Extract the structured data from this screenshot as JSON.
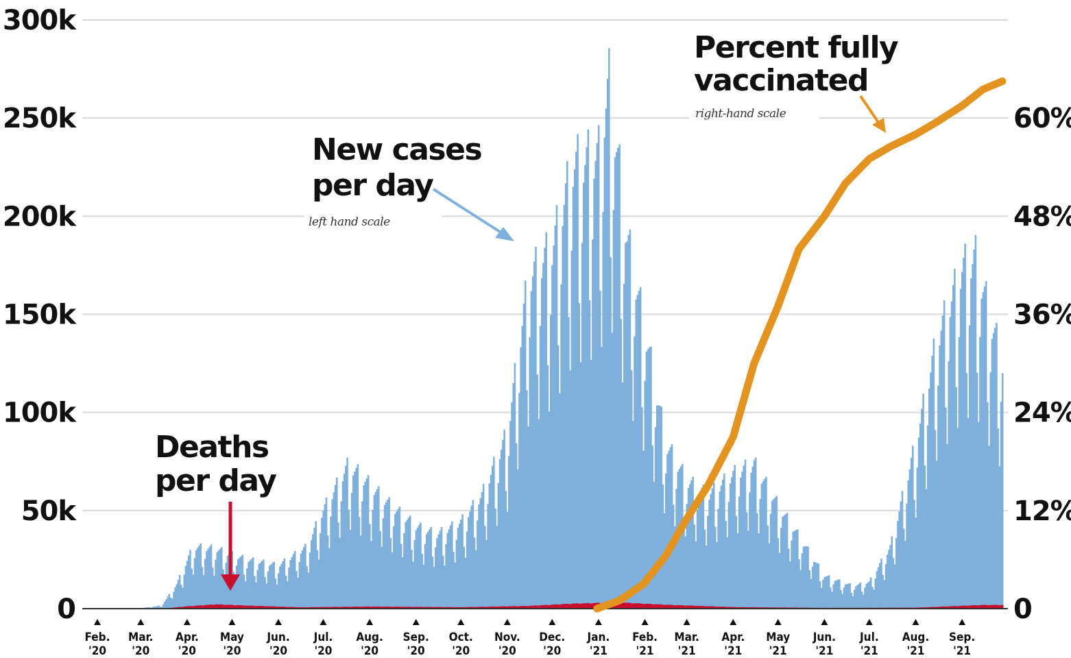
{
  "chart_data": {
    "type": "bar",
    "left_axis": {
      "ticks": [
        0,
        50000,
        100000,
        150000,
        200000,
        250000,
        300000
      ],
      "tick_labels": [
        "0",
        "50k",
        "100k",
        "150k",
        "200k",
        "250k",
        "300k"
      ],
      "ylim": [
        0,
        300000
      ]
    },
    "right_axis": {
      "ticks": [
        0,
        12,
        24,
        36,
        48,
        60
      ],
      "tick_labels": [
        "0",
        "12%",
        "24%",
        "36%",
        "48%",
        "60%"
      ],
      "ylim": [
        0,
        72
      ]
    },
    "x_ticks": [
      {
        "date": "2020-02-01",
        "month": "Feb.",
        "year": "'20"
      },
      {
        "date": "2020-03-01",
        "month": "Mar.",
        "year": "'20"
      },
      {
        "date": "2020-04-01",
        "month": "Apr.",
        "year": "'20"
      },
      {
        "date": "2020-05-01",
        "month": "May",
        "year": "'20"
      },
      {
        "date": "2020-06-01",
        "month": "Jun.",
        "year": "'20"
      },
      {
        "date": "2020-07-01",
        "month": "Jul.",
        "year": "'20"
      },
      {
        "date": "2020-08-01",
        "month": "Aug.",
        "year": "'20"
      },
      {
        "date": "2020-09-01",
        "month": "Sep.",
        "year": "'20"
      },
      {
        "date": "2020-10-01",
        "month": "Oct.",
        "year": "'20"
      },
      {
        "date": "2020-11-01",
        "month": "Nov.",
        "year": "'20"
      },
      {
        "date": "2020-12-01",
        "month": "Dec.",
        "year": "'20"
      },
      {
        "date": "2021-01-01",
        "month": "Jan.",
        "year": "'21"
      },
      {
        "date": "2021-02-01",
        "month": "Feb.",
        "year": "'21"
      },
      {
        "date": "2021-03-01",
        "month": "Mar.",
        "year": "'21"
      },
      {
        "date": "2021-04-01",
        "month": "Apr.",
        "year": "'21"
      },
      {
        "date": "2021-05-01",
        "month": "May",
        "year": "'21"
      },
      {
        "date": "2021-06-01",
        "month": "Jun.",
        "year": "'21"
      },
      {
        "date": "2021-07-01",
        "month": "Jul.",
        "year": "'21"
      },
      {
        "date": "2021-08-01",
        "month": "Aug.",
        "year": "'21"
      },
      {
        "date": "2021-09-01",
        "month": "Sep.",
        "year": "'21"
      }
    ],
    "series": [
      {
        "name": "New cases per day",
        "scale_note": "left hand scale",
        "axis": "left",
        "kind": "bars",
        "color": "#7fb0dc",
        "points": [
          {
            "date": "2020-02-01",
            "value": 0
          },
          {
            "date": "2020-03-01",
            "value": 200
          },
          {
            "date": "2020-03-15",
            "value": 1500
          },
          {
            "date": "2020-03-25",
            "value": 12000
          },
          {
            "date": "2020-04-05",
            "value": 30000
          },
          {
            "date": "2020-04-20",
            "value": 29000
          },
          {
            "date": "2020-05-10",
            "value": 24000
          },
          {
            "date": "2020-06-01",
            "value": 21000
          },
          {
            "date": "2020-06-20",
            "value": 30000
          },
          {
            "date": "2020-07-01",
            "value": 48000
          },
          {
            "date": "2020-07-18",
            "value": 70000
          },
          {
            "date": "2020-08-01",
            "value": 60000
          },
          {
            "date": "2020-08-15",
            "value": 50000
          },
          {
            "date": "2020-09-01",
            "value": 40000
          },
          {
            "date": "2020-09-15",
            "value": 36000
          },
          {
            "date": "2020-10-01",
            "value": 42000
          },
          {
            "date": "2020-10-15",
            "value": 55000
          },
          {
            "date": "2020-11-01",
            "value": 85000
          },
          {
            "date": "2020-11-15",
            "value": 160000
          },
          {
            "date": "2020-12-01",
            "value": 175000
          },
          {
            "date": "2020-12-15",
            "value": 215000
          },
          {
            "date": "2021-01-01",
            "value": 220000
          },
          {
            "date": "2021-01-08",
            "value": 255000
          },
          {
            "date": "2021-01-20",
            "value": 180000
          },
          {
            "date": "2021-02-01",
            "value": 135000
          },
          {
            "date": "2021-02-15",
            "value": 80000
          },
          {
            "date": "2021-03-01",
            "value": 62000
          },
          {
            "date": "2021-03-15",
            "value": 55000
          },
          {
            "date": "2021-04-01",
            "value": 65000
          },
          {
            "date": "2021-04-15",
            "value": 70000
          },
          {
            "date": "2021-05-01",
            "value": 50000
          },
          {
            "date": "2021-05-15",
            "value": 35000
          },
          {
            "date": "2021-06-01",
            "value": 16000
          },
          {
            "date": "2021-06-20",
            "value": 11000
          },
          {
            "date": "2021-07-01",
            "value": 13000
          },
          {
            "date": "2021-07-15",
            "value": 30000
          },
          {
            "date": "2021-08-01",
            "value": 80000
          },
          {
            "date": "2021-08-15",
            "value": 130000
          },
          {
            "date": "2021-09-01",
            "value": 165000
          },
          {
            "date": "2021-09-10",
            "value": 170000
          },
          {
            "date": "2021-09-20",
            "value": 140000
          },
          {
            "date": "2021-09-28",
            "value": 120000
          }
        ]
      },
      {
        "name": "Deaths per day",
        "axis": "left",
        "kind": "bars",
        "color": "#c8102e",
        "points": [
          {
            "date": "2020-03-15",
            "value": 0
          },
          {
            "date": "2020-04-01",
            "value": 1200
          },
          {
            "date": "2020-04-20",
            "value": 2200
          },
          {
            "date": "2020-05-15",
            "value": 1500
          },
          {
            "date": "2020-06-15",
            "value": 700
          },
          {
            "date": "2020-08-01",
            "value": 1100
          },
          {
            "date": "2020-10-01",
            "value": 750
          },
          {
            "date": "2020-11-15",
            "value": 1400
          },
          {
            "date": "2020-12-15",
            "value": 2600
          },
          {
            "date": "2021-01-15",
            "value": 3200
          },
          {
            "date": "2021-02-15",
            "value": 2000
          },
          {
            "date": "2021-04-01",
            "value": 800
          },
          {
            "date": "2021-06-01",
            "value": 400
          },
          {
            "date": "2021-08-01",
            "value": 500
          },
          {
            "date": "2021-09-15",
            "value": 1900
          }
        ]
      },
      {
        "name": "Percent fully vaccinated",
        "scale_note": "right-hand scale",
        "axis": "right",
        "kind": "line",
        "color": "#e39420",
        "points": [
          {
            "date": "2020-12-31",
            "value": 0
          },
          {
            "date": "2021-01-15",
            "value": 1
          },
          {
            "date": "2021-01-31",
            "value": 3
          },
          {
            "date": "2021-02-15",
            "value": 6.5
          },
          {
            "date": "2021-03-01",
            "value": 11
          },
          {
            "date": "2021-03-15",
            "value": 15
          },
          {
            "date": "2021-04-01",
            "value": 21
          },
          {
            "date": "2021-04-15",
            "value": 30
          },
          {
            "date": "2021-05-01",
            "value": 37
          },
          {
            "date": "2021-05-15",
            "value": 44
          },
          {
            "date": "2021-06-01",
            "value": 48
          },
          {
            "date": "2021-06-15",
            "value": 52
          },
          {
            "date": "2021-07-01",
            "value": 55
          },
          {
            "date": "2021-07-15",
            "value": 56.5
          },
          {
            "date": "2021-08-01",
            "value": 58
          },
          {
            "date": "2021-08-15",
            "value": 59.5
          },
          {
            "date": "2021-09-01",
            "value": 61.5
          },
          {
            "date": "2021-09-15",
            "value": 63.5
          },
          {
            "date": "2021-09-28",
            "value": 64.5
          }
        ]
      }
    ],
    "annotations": {
      "cases": {
        "lines": [
          "New cases",
          "per day"
        ],
        "note": "left hand scale"
      },
      "deaths": {
        "lines": [
          "Deaths",
          "per day"
        ]
      },
      "vax": {
        "lines": [
          "Percent fully",
          "vaccinated"
        ],
        "note": "right-hand scale"
      }
    },
    "grid": true
  }
}
